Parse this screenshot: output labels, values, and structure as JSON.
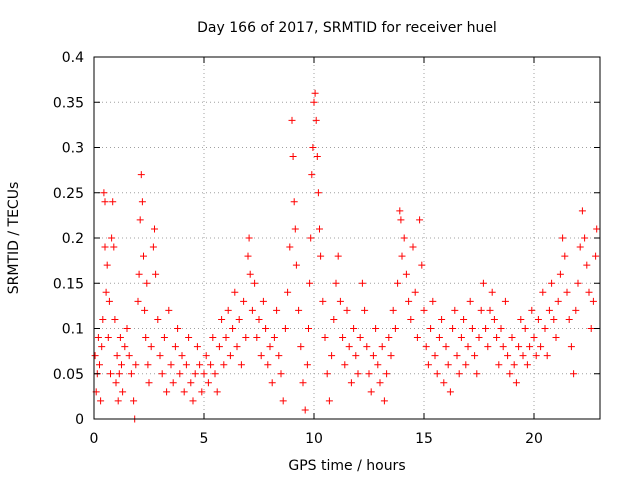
{
  "chart_data": {
    "type": "scatter",
    "title": "Day 166 of 2017, SRMTID for receiver huel",
    "xlabel": "GPS time / hours",
    "ylabel": "SRMTID / TECUs",
    "xlim": [
      0,
      23
    ],
    "ylim": [
      0,
      0.4
    ],
    "x_ticks": [
      0,
      5,
      10,
      15,
      20
    ],
    "x_tick_labels": [
      "0",
      "5",
      "10",
      "15",
      "20"
    ],
    "y_ticks": [
      0,
      0.05,
      0.1,
      0.15,
      0.2,
      0.25,
      0.3,
      0.35,
      0.4
    ],
    "y_tick_labels": [
      "0",
      "0.05",
      "0.1",
      "0.15",
      "0.2",
      "0.25",
      "0.3",
      "0.35",
      "0.4"
    ],
    "grid": true,
    "marker": "+",
    "color": "#ff0000",
    "series": [
      {
        "name": "SRMTID",
        "points": [
          [
            0.05,
            0.07
          ],
          [
            0.1,
            0.03
          ],
          [
            0.15,
            0.05
          ],
          [
            0.2,
            0.09
          ],
          [
            0.25,
            0.06
          ],
          [
            0.3,
            0.02
          ],
          [
            0.35,
            0.08
          ],
          [
            0.4,
            0.11
          ],
          [
            0.45,
            0.25
          ],
          [
            0.5,
            0.24
          ],
          [
            0.5,
            0.19
          ],
          [
            0.55,
            0.14
          ],
          [
            0.6,
            0.17
          ],
          [
            0.65,
            0.09
          ],
          [
            0.7,
            0.13
          ],
          [
            0.75,
            0.05
          ],
          [
            0.8,
            0.2
          ],
          [
            0.85,
            0.24
          ],
          [
            0.9,
            0.19
          ],
          [
            0.95,
            0.11
          ],
          [
            1.0,
            0.04
          ],
          [
            1.05,
            0.07
          ],
          [
            1.1,
            0.02
          ],
          [
            1.15,
            0.05
          ],
          [
            1.2,
            0.09
          ],
          [
            1.25,
            0.06
          ],
          [
            1.3,
            0.03
          ],
          [
            1.4,
            0.08
          ],
          [
            1.5,
            0.1
          ],
          [
            1.6,
            0.07
          ],
          [
            1.7,
            0.05
          ],
          [
            1.8,
            0.02
          ],
          [
            1.85,
            0.0
          ],
          [
            1.9,
            0.06
          ],
          [
            2.0,
            0.13
          ],
          [
            2.05,
            0.16
          ],
          [
            2.1,
            0.22
          ],
          [
            2.15,
            0.27
          ],
          [
            2.2,
            0.24
          ],
          [
            2.25,
            0.18
          ],
          [
            2.3,
            0.12
          ],
          [
            2.35,
            0.09
          ],
          [
            2.4,
            0.15
          ],
          [
            2.45,
            0.06
          ],
          [
            2.5,
            0.04
          ],
          [
            2.6,
            0.08
          ],
          [
            2.7,
            0.19
          ],
          [
            2.75,
            0.21
          ],
          [
            2.8,
            0.16
          ],
          [
            2.9,
            0.11
          ],
          [
            3.0,
            0.07
          ],
          [
            3.1,
            0.05
          ],
          [
            3.2,
            0.09
          ],
          [
            3.3,
            0.03
          ],
          [
            3.4,
            0.12
          ],
          [
            3.5,
            0.06
          ],
          [
            3.6,
            0.04
          ],
          [
            3.7,
            0.08
          ],
          [
            3.8,
            0.1
          ],
          [
            3.9,
            0.05
          ],
          [
            4.0,
            0.07
          ],
          [
            4.1,
            0.03
          ],
          [
            4.2,
            0.06
          ],
          [
            4.3,
            0.09
          ],
          [
            4.4,
            0.04
          ],
          [
            4.5,
            0.02
          ],
          [
            4.6,
            0.05
          ],
          [
            4.7,
            0.08
          ],
          [
            4.8,
            0.06
          ],
          [
            4.9,
            0.03
          ],
          [
            5.0,
            0.05
          ],
          [
            5.1,
            0.07
          ],
          [
            5.2,
            0.04
          ],
          [
            5.3,
            0.06
          ],
          [
            5.4,
            0.09
          ],
          [
            5.5,
            0.05
          ],
          [
            5.6,
            0.03
          ],
          [
            5.7,
            0.08
          ],
          [
            5.8,
            0.11
          ],
          [
            5.9,
            0.06
          ],
          [
            6.0,
            0.09
          ],
          [
            6.1,
            0.12
          ],
          [
            6.2,
            0.07
          ],
          [
            6.3,
            0.1
          ],
          [
            6.4,
            0.14
          ],
          [
            6.5,
            0.08
          ],
          [
            6.6,
            0.11
          ],
          [
            6.7,
            0.06
          ],
          [
            6.8,
            0.13
          ],
          [
            6.9,
            0.09
          ],
          [
            7.0,
            0.18
          ],
          [
            7.05,
            0.2
          ],
          [
            7.1,
            0.16
          ],
          [
            7.2,
            0.12
          ],
          [
            7.3,
            0.15
          ],
          [
            7.4,
            0.09
          ],
          [
            7.5,
            0.11
          ],
          [
            7.6,
            0.07
          ],
          [
            7.7,
            0.13
          ],
          [
            7.8,
            0.1
          ],
          [
            7.9,
            0.06
          ],
          [
            8.0,
            0.08
          ],
          [
            8.1,
            0.04
          ],
          [
            8.2,
            0.09
          ],
          [
            8.3,
            0.12
          ],
          [
            8.4,
            0.07
          ],
          [
            8.5,
            0.05
          ],
          [
            8.6,
            0.02
          ],
          [
            8.7,
            0.1
          ],
          [
            8.8,
            0.14
          ],
          [
            8.9,
            0.19
          ],
          [
            9.0,
            0.33
          ],
          [
            9.05,
            0.29
          ],
          [
            9.1,
            0.24
          ],
          [
            9.15,
            0.21
          ],
          [
            9.2,
            0.17
          ],
          [
            9.3,
            0.12
          ],
          [
            9.4,
            0.08
          ],
          [
            9.5,
            0.04
          ],
          [
            9.6,
            0.01
          ],
          [
            9.7,
            0.06
          ],
          [
            9.75,
            0.1
          ],
          [
            9.8,
            0.15
          ],
          [
            9.85,
            0.2
          ],
          [
            9.9,
            0.27
          ],
          [
            9.95,
            0.3
          ],
          [
            10.0,
            0.35
          ],
          [
            10.05,
            0.36
          ],
          [
            10.1,
            0.33
          ],
          [
            10.15,
            0.29
          ],
          [
            10.2,
            0.25
          ],
          [
            10.25,
            0.21
          ],
          [
            10.3,
            0.18
          ],
          [
            10.4,
            0.13
          ],
          [
            10.5,
            0.09
          ],
          [
            10.6,
            0.05
          ],
          [
            10.7,
            0.02
          ],
          [
            10.8,
            0.07
          ],
          [
            10.9,
            0.11
          ],
          [
            11.0,
            0.15
          ],
          [
            11.1,
            0.18
          ],
          [
            11.2,
            0.13
          ],
          [
            11.3,
            0.09
          ],
          [
            11.4,
            0.06
          ],
          [
            11.5,
            0.12
          ],
          [
            11.6,
            0.08
          ],
          [
            11.7,
            0.04
          ],
          [
            11.8,
            0.1
          ],
          [
            11.9,
            0.07
          ],
          [
            12.0,
            0.05
          ],
          [
            12.1,
            0.09
          ],
          [
            12.2,
            0.15
          ],
          [
            12.3,
            0.12
          ],
          [
            12.4,
            0.08
          ],
          [
            12.5,
            0.05
          ],
          [
            12.6,
            0.03
          ],
          [
            12.7,
            0.07
          ],
          [
            12.8,
            0.1
          ],
          [
            12.9,
            0.06
          ],
          [
            13.0,
            0.04
          ],
          [
            13.1,
            0.08
          ],
          [
            13.2,
            0.02
          ],
          [
            13.3,
            0.05
          ],
          [
            13.4,
            0.09
          ],
          [
            13.5,
            0.07
          ],
          [
            13.6,
            0.12
          ],
          [
            13.7,
            0.1
          ],
          [
            13.8,
            0.15
          ],
          [
            13.9,
            0.23
          ],
          [
            13.95,
            0.22
          ],
          [
            14.0,
            0.18
          ],
          [
            14.1,
            0.2
          ],
          [
            14.2,
            0.16
          ],
          [
            14.3,
            0.13
          ],
          [
            14.4,
            0.11
          ],
          [
            14.5,
            0.19
          ],
          [
            14.6,
            0.14
          ],
          [
            14.7,
            0.09
          ],
          [
            14.8,
            0.22
          ],
          [
            14.9,
            0.17
          ],
          [
            15.0,
            0.12
          ],
          [
            15.1,
            0.08
          ],
          [
            15.2,
            0.06
          ],
          [
            15.3,
            0.1
          ],
          [
            15.4,
            0.13
          ],
          [
            15.5,
            0.07
          ],
          [
            15.6,
            0.05
          ],
          [
            15.7,
            0.09
          ],
          [
            15.8,
            0.11
          ],
          [
            15.9,
            0.04
          ],
          [
            16.0,
            0.08
          ],
          [
            16.1,
            0.06
          ],
          [
            16.2,
            0.03
          ],
          [
            16.3,
            0.1
          ],
          [
            16.4,
            0.12
          ],
          [
            16.5,
            0.07
          ],
          [
            16.6,
            0.05
          ],
          [
            16.7,
            0.09
          ],
          [
            16.8,
            0.11
          ],
          [
            16.9,
            0.06
          ],
          [
            17.0,
            0.08
          ],
          [
            17.1,
            0.13
          ],
          [
            17.2,
            0.1
          ],
          [
            17.3,
            0.07
          ],
          [
            17.4,
            0.05
          ],
          [
            17.5,
            0.09
          ],
          [
            17.6,
            0.12
          ],
          [
            17.7,
            0.15
          ],
          [
            17.8,
            0.1
          ],
          [
            17.9,
            0.08
          ],
          [
            18.0,
            0.12
          ],
          [
            18.1,
            0.14
          ],
          [
            18.2,
            0.11
          ],
          [
            18.3,
            0.09
          ],
          [
            18.4,
            0.06
          ],
          [
            18.5,
            0.1
          ],
          [
            18.6,
            0.08
          ],
          [
            18.7,
            0.13
          ],
          [
            18.8,
            0.07
          ],
          [
            18.9,
            0.05
          ],
          [
            19.0,
            0.09
          ],
          [
            19.1,
            0.06
          ],
          [
            19.2,
            0.04
          ],
          [
            19.3,
            0.08
          ],
          [
            19.4,
            0.11
          ],
          [
            19.5,
            0.07
          ],
          [
            19.6,
            0.1
          ],
          [
            19.7,
            0.06
          ],
          [
            19.8,
            0.08
          ],
          [
            19.9,
            0.12
          ],
          [
            20.0,
            0.09
          ],
          [
            20.1,
            0.07
          ],
          [
            20.2,
            0.11
          ],
          [
            20.3,
            0.08
          ],
          [
            20.4,
            0.14
          ],
          [
            20.5,
            0.1
          ],
          [
            20.6,
            0.07
          ],
          [
            20.7,
            0.12
          ],
          [
            20.8,
            0.15
          ],
          [
            20.9,
            0.11
          ],
          [
            21.0,
            0.09
          ],
          [
            21.1,
            0.13
          ],
          [
            21.2,
            0.16
          ],
          [
            21.3,
            0.2
          ],
          [
            21.4,
            0.18
          ],
          [
            21.5,
            0.14
          ],
          [
            21.6,
            0.11
          ],
          [
            21.7,
            0.08
          ],
          [
            21.8,
            0.05
          ],
          [
            21.9,
            0.12
          ],
          [
            22.0,
            0.15
          ],
          [
            22.1,
            0.19
          ],
          [
            22.2,
            0.23
          ],
          [
            22.3,
            0.2
          ],
          [
            22.4,
            0.17
          ],
          [
            22.5,
            0.14
          ],
          [
            22.6,
            0.1
          ],
          [
            22.7,
            0.13
          ],
          [
            22.8,
            0.18
          ],
          [
            22.85,
            0.21
          ]
        ]
      }
    ]
  }
}
